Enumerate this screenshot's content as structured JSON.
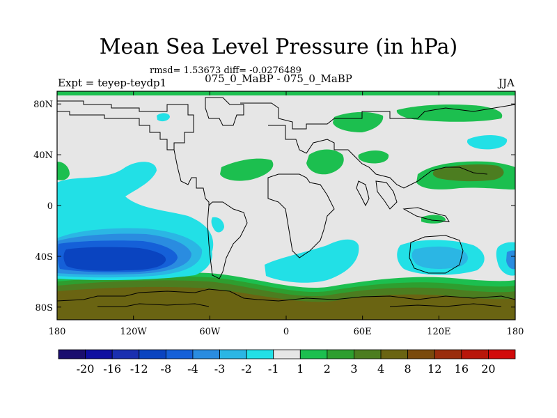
{
  "title": "Mean Sea Level Pressure (in hPa)",
  "stats": "rmsd= 1.53673 diff= -0.0276489",
  "subtitle_left": "Expt = teyep-teydp1",
  "subtitle_center": "075_0_MaBP - 075_0_MaBP",
  "subtitle_right": "JJA",
  "chart_data": {
    "type": "heatmap",
    "title": "Mean Sea Level Pressure (in hPa)",
    "x_ticks": [
      "180",
      "120W",
      "60W",
      "0",
      "60E",
      "120E",
      "180"
    ],
    "y_ticks": [
      "80N",
      "40N",
      "0",
      "40S",
      "80S"
    ],
    "xlim": [
      -180,
      180
    ],
    "ylim": [
      -90,
      90
    ],
    "colorbar": {
      "labels": [
        "-20",
        "-16",
        "-12",
        "-8",
        "-4",
        "-3",
        "-2",
        "-1",
        "1",
        "2",
        "3",
        "4",
        "8",
        "12",
        "16",
        "20"
      ],
      "colors": [
        "#1a0e6e",
        "#0f0fa0",
        "#1a2fb0",
        "#0a44c0",
        "#1560d8",
        "#2a8ce0",
        "#2bb6e4",
        "#22e0e6",
        "#e6e6e6",
        "#1cbf4f",
        "#2e9e2f",
        "#4c7d20",
        "#6a6412",
        "#7a4a0c",
        "#9a2d0c",
        "#b8160a",
        "#d10a0a"
      ]
    },
    "features": [
      {
        "name": "Southern Ocean positive band",
        "lat": "55S-90S",
        "value_range": "3 to 8"
      },
      {
        "name": "South Pacific negative core",
        "lon": "180-100W",
        "lat": "25S-55S",
        "value_range": "-8 to -1"
      },
      {
        "name": "South Indian Ocean negative",
        "lon": "25E-60E",
        "lat": "30S-55S",
        "value_range": "-1"
      },
      {
        "name": "North Pacific positive",
        "lon": "110E-180",
        "lat": "20N-45N",
        "value_range": "1 to 3"
      },
      {
        "name": "Arctic positive patches",
        "lat": "65N-80N",
        "value_range": "1"
      }
    ]
  }
}
